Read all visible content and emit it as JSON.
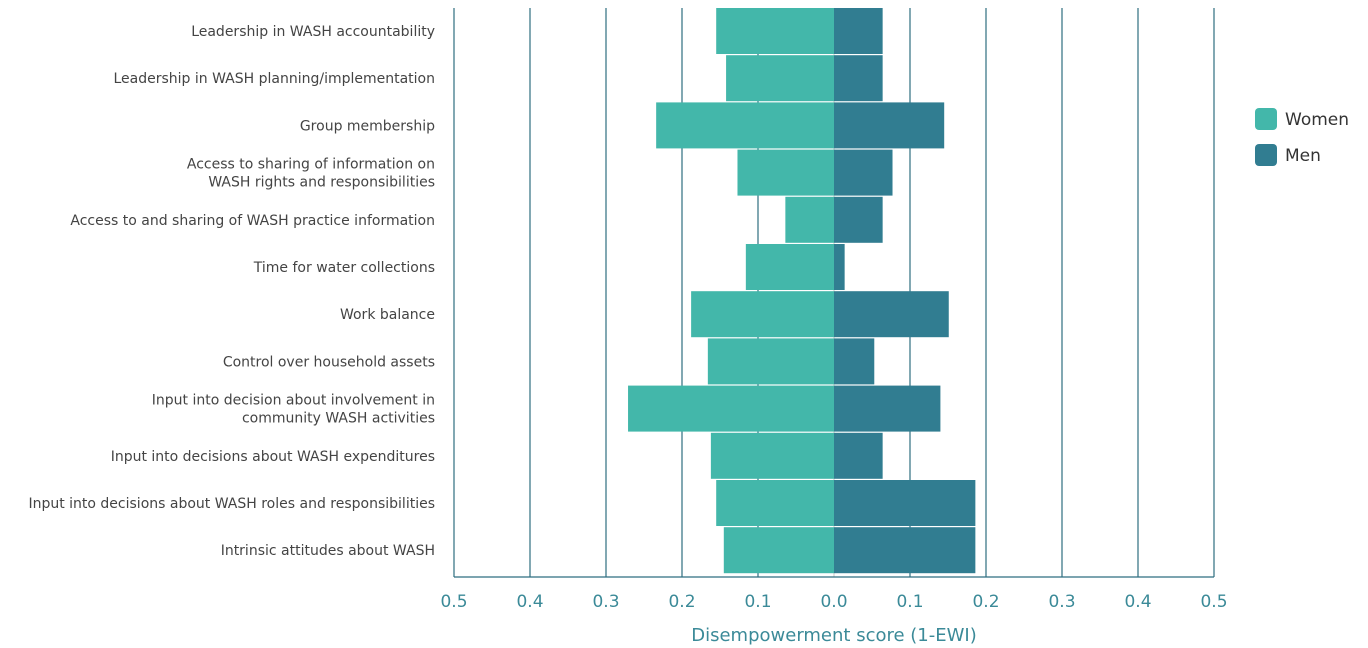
{
  "chart_data": {
    "type": "bar",
    "orientation": "horizontal-diverging",
    "xlabel": "Disempowerment score (1-EWI)",
    "x_ticks": [
      "0.5",
      "0.4",
      "0.3",
      "0.2",
      "0.1",
      "0.0",
      "0.1",
      "0.2",
      "0.3",
      "0.4",
      "0.5"
    ],
    "xlim": [
      -0.5,
      0.5
    ],
    "grid": true,
    "legend_position": "right",
    "categories": [
      [
        "Leadership in WASH accountability"
      ],
      [
        "Leadership in WASH planning/implementation"
      ],
      [
        "Group membership"
      ],
      [
        "Access to sharing of information on",
        "WASH rights and responsibilities"
      ],
      [
        "Access to and sharing of WASH practice information"
      ],
      [
        "Time for water collections"
      ],
      [
        "Work balance"
      ],
      [
        "Control over household assets"
      ],
      [
        "Input into decision about involvement in",
        "community WASH activities"
      ],
      [
        "Input into decisions about WASH expenditures"
      ],
      [
        "Input into decisions about WASH roles and responsibilities"
      ],
      [
        "Intrinsic attitudes about WASH"
      ]
    ],
    "series": [
      {
        "name": "Women",
        "color": "#43b7aa",
        "values": [
          0.155,
          0.142,
          0.234,
          0.127,
          0.064,
          0.116,
          0.188,
          0.166,
          0.271,
          0.162,
          0.155,
          0.145
        ]
      },
      {
        "name": "Men",
        "color": "#317d91",
        "values": [
          0.064,
          0.064,
          0.145,
          0.077,
          0.064,
          0.014,
          0.151,
          0.053,
          0.14,
          0.064,
          0.186,
          0.186
        ]
      }
    ]
  }
}
